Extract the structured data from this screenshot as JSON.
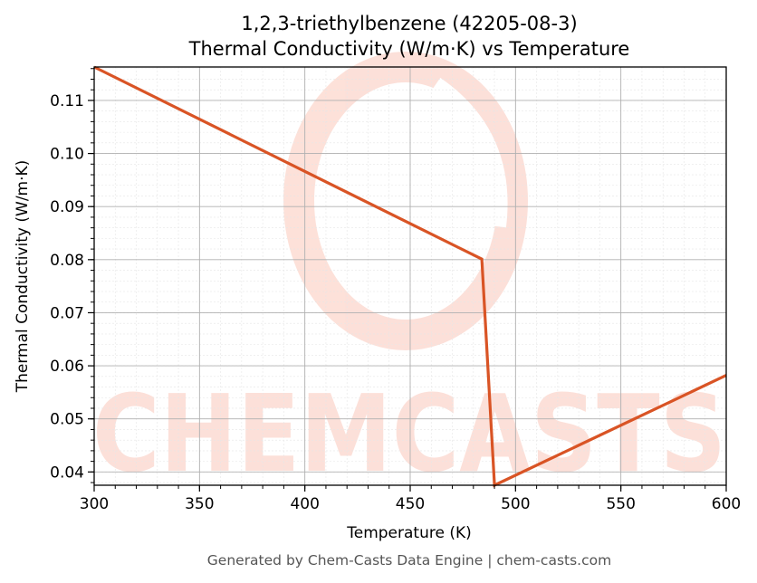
{
  "chart_data": {
    "type": "line",
    "title_line1": "1,2,3-triethylbenzene (42205-08-3)",
    "title_line2": "Thermal Conductivity (W/m·K) vs Temperature",
    "xlabel": "Temperature (K)",
    "ylabel": "Thermal Conductivity (W/m·K)",
    "xlim": [
      300,
      600
    ],
    "ylim": [
      0.0375,
      0.1163
    ],
    "xticks": [
      "300",
      "350",
      "400",
      "450",
      "500",
      "550",
      "600"
    ],
    "yticks": [
      "0.04",
      "0.05",
      "0.06",
      "0.07",
      "0.08",
      "0.09",
      "0.10",
      "0.11"
    ],
    "grid": true,
    "series": [
      {
        "color": "#d95425",
        "x": [
          300,
          484,
          490,
          600
        ],
        "y": [
          0.1163,
          0.0801,
          0.0375,
          0.0582
        ]
      }
    ],
    "watermark": "CHEMCASTS",
    "footer": "Generated by Chem-Casts Data Engine | chem-casts.com"
  }
}
